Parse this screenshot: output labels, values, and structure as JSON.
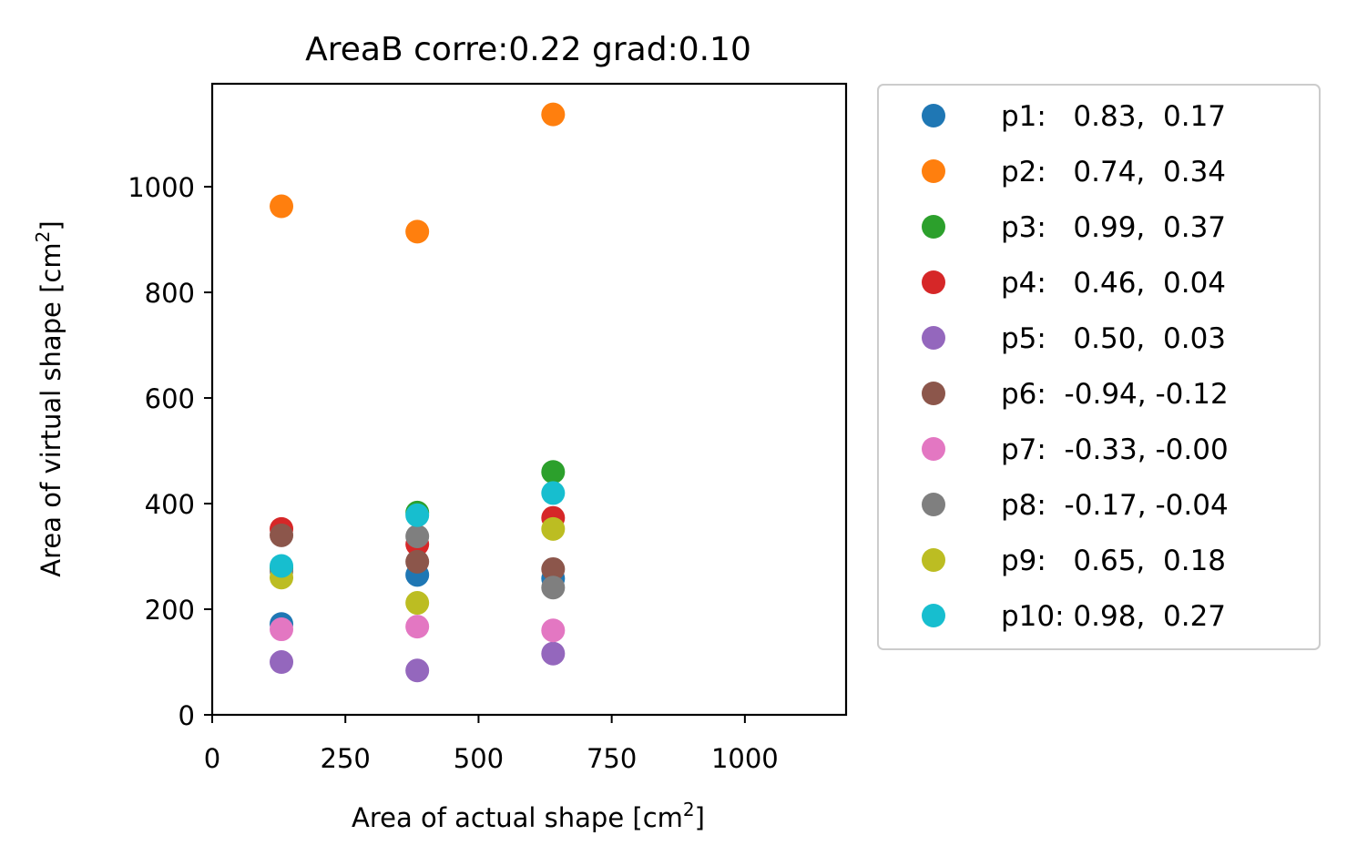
{
  "chart_data": {
    "type": "scatter",
    "title": "AreaB corre:0.22 grad:0.10",
    "xlabel": {
      "main": "Area of actual shape [cm",
      "sup": "2",
      "end": "]"
    },
    "ylabel": {
      "main": "Area of virtual shape [cm",
      "sup": "2",
      "end": "]"
    },
    "xlim": [
      0,
      1190
    ],
    "ylim": [
      0,
      1195
    ],
    "xticks": [
      0,
      250,
      500,
      750,
      1000
    ],
    "yticks": [
      0,
      200,
      400,
      600,
      800,
      1000
    ],
    "xtick_labels": [
      "0",
      "250",
      "500",
      "750",
      "1000"
    ],
    "ytick_labels": [
      "0",
      "200",
      "400",
      "600",
      "800",
      "1000"
    ],
    "legend_position": "outside-right",
    "series": [
      {
        "name": "p1:   0.83,  0.17",
        "color": "#1f77b4",
        "x": [
          130,
          385,
          640
        ],
        "y": [
          172,
          265,
          258
        ]
      },
      {
        "name": "p2:   0.74,  0.34",
        "color": "#ff7f0e",
        "x": [
          130,
          385,
          640
        ],
        "y": [
          963,
          915,
          1137
        ]
      },
      {
        "name": "p3:   0.99,  0.37",
        "color": "#2ca02c",
        "x": [
          130,
          385,
          640
        ],
        "y": [
          278,
          383,
          460
        ]
      },
      {
        "name": "p4:   0.46,  0.04",
        "color": "#d62728",
        "x": [
          130,
          385,
          640
        ],
        "y": [
          352,
          323,
          373
        ]
      },
      {
        "name": "p5:   0.50,  0.03",
        "color": "#9467bd",
        "x": [
          130,
          385,
          640
        ],
        "y": [
          100,
          84,
          116
        ]
      },
      {
        "name": "p6:  -0.94, -0.12",
        "color": "#8c564b",
        "x": [
          130,
          385,
          640
        ],
        "y": [
          340,
          290,
          276
        ]
      },
      {
        "name": "p7:  -0.33, -0.00",
        "color": "#e377c2",
        "x": [
          130,
          385,
          640
        ],
        "y": [
          162,
          167,
          160
        ]
      },
      {
        "name": "p8:  -0.17, -0.04",
        "color": "#7f7f7f",
        "x": [
          130,
          385,
          640
        ],
        "y": [
          272,
          338,
          241
        ]
      },
      {
        "name": "p9:   0.65,  0.18",
        "color": "#bcbd22",
        "x": [
          130,
          385,
          640
        ],
        "y": [
          260,
          212,
          352
        ]
      },
      {
        "name": "p10: 0.98,  0.27",
        "color": "#17becf",
        "x": [
          130,
          385,
          640
        ],
        "y": [
          282,
          378,
          420
        ]
      }
    ]
  }
}
